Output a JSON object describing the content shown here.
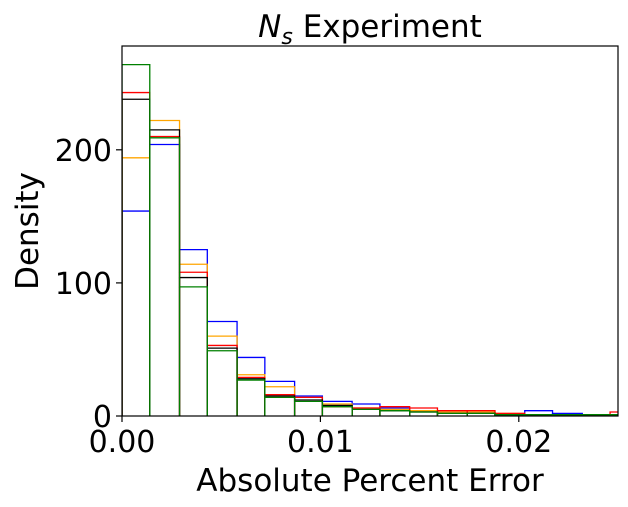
{
  "chart_data": {
    "type": "histogram",
    "title": "N_s Experiment",
    "title_main": "N",
    "title_sub": "s",
    "title_rest": " Experiment",
    "xlabel": "Absolute Percent Error",
    "ylabel": "Density",
    "xlim": [
      0.0,
      0.025
    ],
    "ylim": [
      0,
      278
    ],
    "xticks": [
      {
        "value": 0.0,
        "label": "0.00"
      },
      {
        "value": 0.01,
        "label": "0.01"
      },
      {
        "value": 0.02,
        "label": "0.02"
      }
    ],
    "yticks": [
      {
        "value": 0,
        "label": "0"
      },
      {
        "value": 100,
        "label": "100"
      },
      {
        "value": 200,
        "label": "200"
      }
    ],
    "bin_edges": [
      0.0,
      0.0014,
      0.0029,
      0.0043,
      0.0058,
      0.0072,
      0.0087,
      0.0101,
      0.0116,
      0.013,
      0.0145,
      0.0159,
      0.0174,
      0.0188,
      0.0203,
      0.0217,
      0.0232,
      0.0246,
      0.026
    ],
    "grid": false,
    "legend": "none",
    "series": [
      {
        "color": "#0000ff",
        "values": [
          154,
          204,
          125,
          71,
          44,
          26,
          15,
          11,
          9,
          6,
          4,
          3,
          2,
          1,
          4,
          2,
          1,
          1
        ]
      },
      {
        "color": "#ffa500",
        "values": [
          194,
          222,
          114,
          60,
          31,
          22,
          14,
          9,
          6,
          5,
          4,
          3,
          3,
          2,
          1,
          1,
          1,
          1
        ]
      },
      {
        "color": "#ff0000",
        "values": [
          243,
          210,
          108,
          53,
          29,
          16,
          14,
          7,
          6,
          7,
          6,
          4,
          4,
          2,
          1,
          1,
          1,
          3
        ]
      },
      {
        "color": "#000000",
        "values": [
          238,
          215,
          104,
          51,
          28,
          15,
          12,
          8,
          5,
          4,
          3,
          2,
          2,
          1,
          1,
          1,
          1,
          1
        ]
      },
      {
        "color": "#008000",
        "values": [
          264,
          209,
          97,
          49,
          27,
          14,
          11,
          7,
          5,
          4,
          3,
          2,
          2,
          1,
          1,
          1,
          1,
          1
        ]
      }
    ]
  }
}
